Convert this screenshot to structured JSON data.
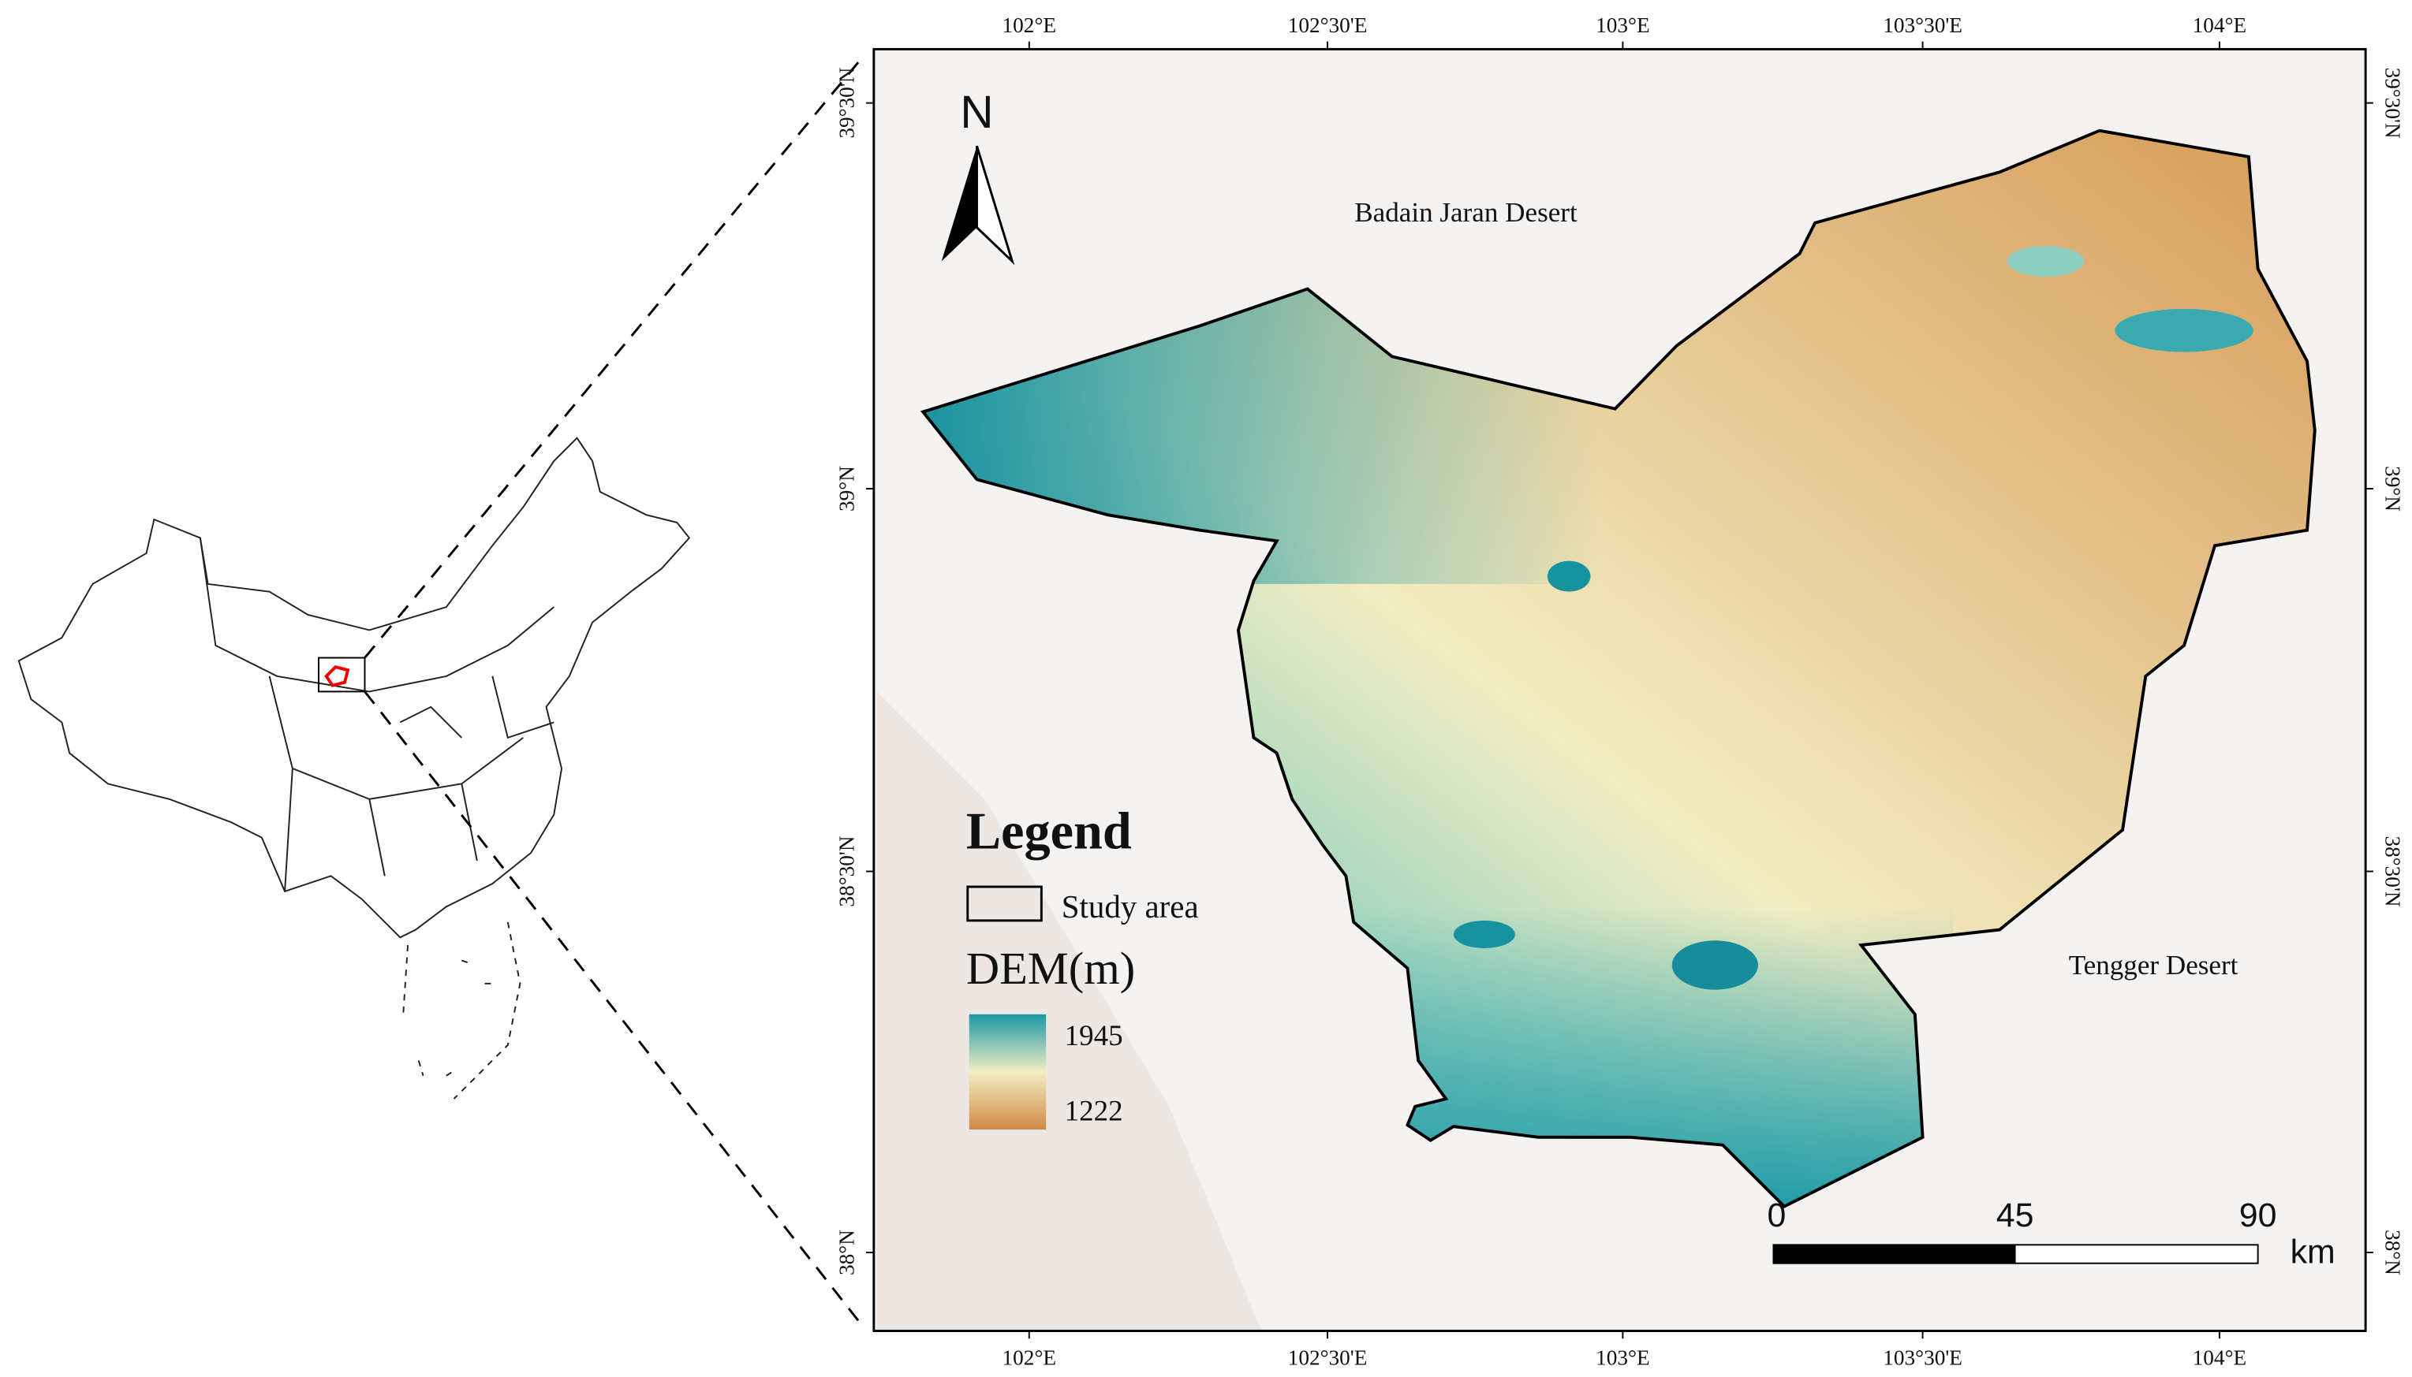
{
  "map": {
    "top_labels": [
      "102°E",
      "102°30'E",
      "103°E",
      "103°30'E",
      "104°E"
    ],
    "bottom_labels": [
      "102°E",
      "102°30'E",
      "103°E",
      "103°30'E",
      "104°E"
    ],
    "left_labels": [
      "39°30'N",
      "39°N",
      "38°30'N",
      "38°N"
    ],
    "right_labels": [
      "39°30'N",
      "39°N",
      "38°30'N",
      "38°N"
    ],
    "places": [
      "Badain Jaran Desert",
      "Tengger Desert"
    ],
    "north": "N",
    "legend": {
      "title": "Legend",
      "study_area": "Study area",
      "dem_title": "DEM(m)",
      "dem_max": "1945",
      "dem_min": "1222"
    },
    "scale_bar": {
      "ticks": [
        "0",
        "45",
        "90"
      ],
      "unit": "km"
    }
  }
}
